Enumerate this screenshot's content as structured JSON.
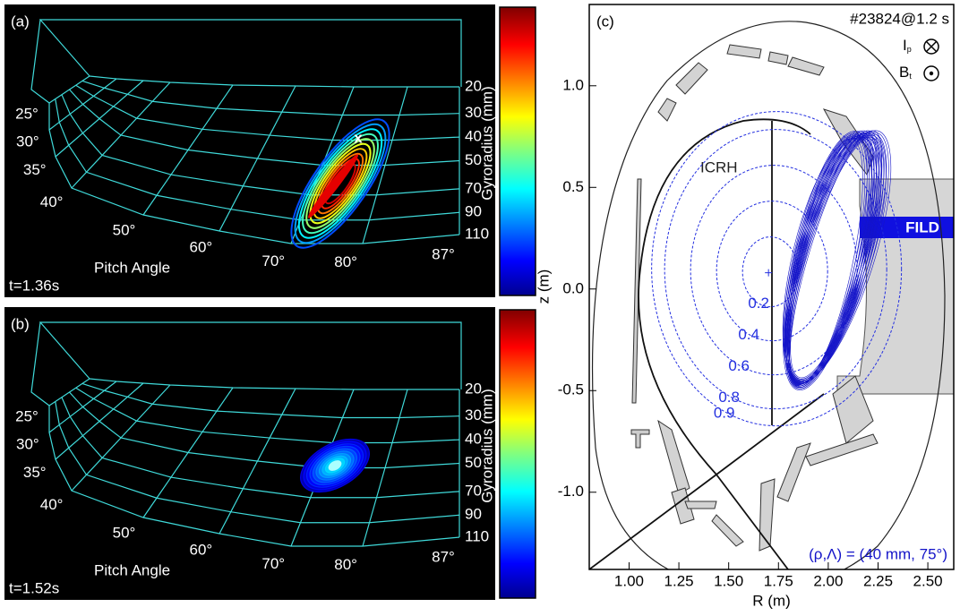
{
  "chart_data": [
    {
      "type": "fild-map",
      "panel": "(a)",
      "time": "t=1.36s",
      "x_label": "Pitch Angle",
      "y_label": "Gyroradius (mm)",
      "xticks": [
        {
          "value": 25,
          "label": "25°"
        },
        {
          "value": 30,
          "label": "30°"
        },
        {
          "value": 35,
          "label": "35°"
        },
        {
          "value": 40,
          "label": "40°"
        },
        {
          "value": 50,
          "label": "50°"
        },
        {
          "value": 60,
          "label": "60°"
        },
        {
          "value": 70,
          "label": "70°"
        },
        {
          "value": 80,
          "label": "80°"
        },
        {
          "value": 87,
          "label": "87°"
        }
      ],
      "yticks": [
        20,
        30,
        40,
        50,
        70,
        90,
        110
      ],
      "marker": "x",
      "colormap": "jet"
    },
    {
      "type": "fild-map",
      "panel": "(b)",
      "time": "t=1.52s",
      "x_label": "Pitch Angle",
      "y_label": "Gyroradius (mm)",
      "xticks": [
        {
          "value": 25,
          "label": "25°"
        },
        {
          "value": 30,
          "label": "30°"
        },
        {
          "value": 35,
          "label": "35°"
        },
        {
          "value": 40,
          "label": "40°"
        },
        {
          "value": 50,
          "label": "50°"
        },
        {
          "value": 60,
          "label": "60°"
        },
        {
          "value": 70,
          "label": "70°"
        },
        {
          "value": 80,
          "label": "80°"
        },
        {
          "value": 87,
          "label": "87°"
        }
      ],
      "yticks": [
        20,
        30,
        40,
        50,
        70,
        90,
        110
      ],
      "colormap": "jet"
    },
    {
      "type": "flux-map",
      "panel": "(c)",
      "shot": "#23824@1.2 s",
      "x_label": "R (m)",
      "y_label": "z (m)",
      "xlim": [
        0.8,
        2.63
      ],
      "ylim": [
        -1.38,
        1.4
      ],
      "xticks": [
        {
          "value": 1,
          "label": "1.00"
        },
        {
          "value": 1.25,
          "label": "1.25"
        },
        {
          "value": 1.5,
          "label": "1.50"
        },
        {
          "value": 1.75,
          "label": "1.75"
        },
        {
          "value": 2,
          "label": "2.00"
        },
        {
          "value": 2.25,
          "label": "2.25"
        },
        {
          "value": 2.5,
          "label": "2.50"
        }
      ],
      "yticks": [
        {
          "value": 1,
          "label": "1.0"
        },
        {
          "value": 0.5,
          "label": "0.5"
        },
        {
          "value": 0,
          "label": "0.0"
        },
        {
          "value": -0.5,
          "label": "-0.5"
        },
        {
          "value": -1,
          "label": "-1.0"
        }
      ],
      "current_label": "I",
      "current_sub": "p",
      "field_label": "B",
      "field_sub": "t",
      "heating_label": "ICRH",
      "detector_label": "FILD",
      "contour_levels": [
        0.2,
        0.4,
        0.6,
        0.8,
        0.9
      ],
      "contour_color": "#2430e0",
      "orbit_label": "(ρ,Λ) = (40 mm, 75°)",
      "orbit_color": "#1414c8"
    }
  ]
}
